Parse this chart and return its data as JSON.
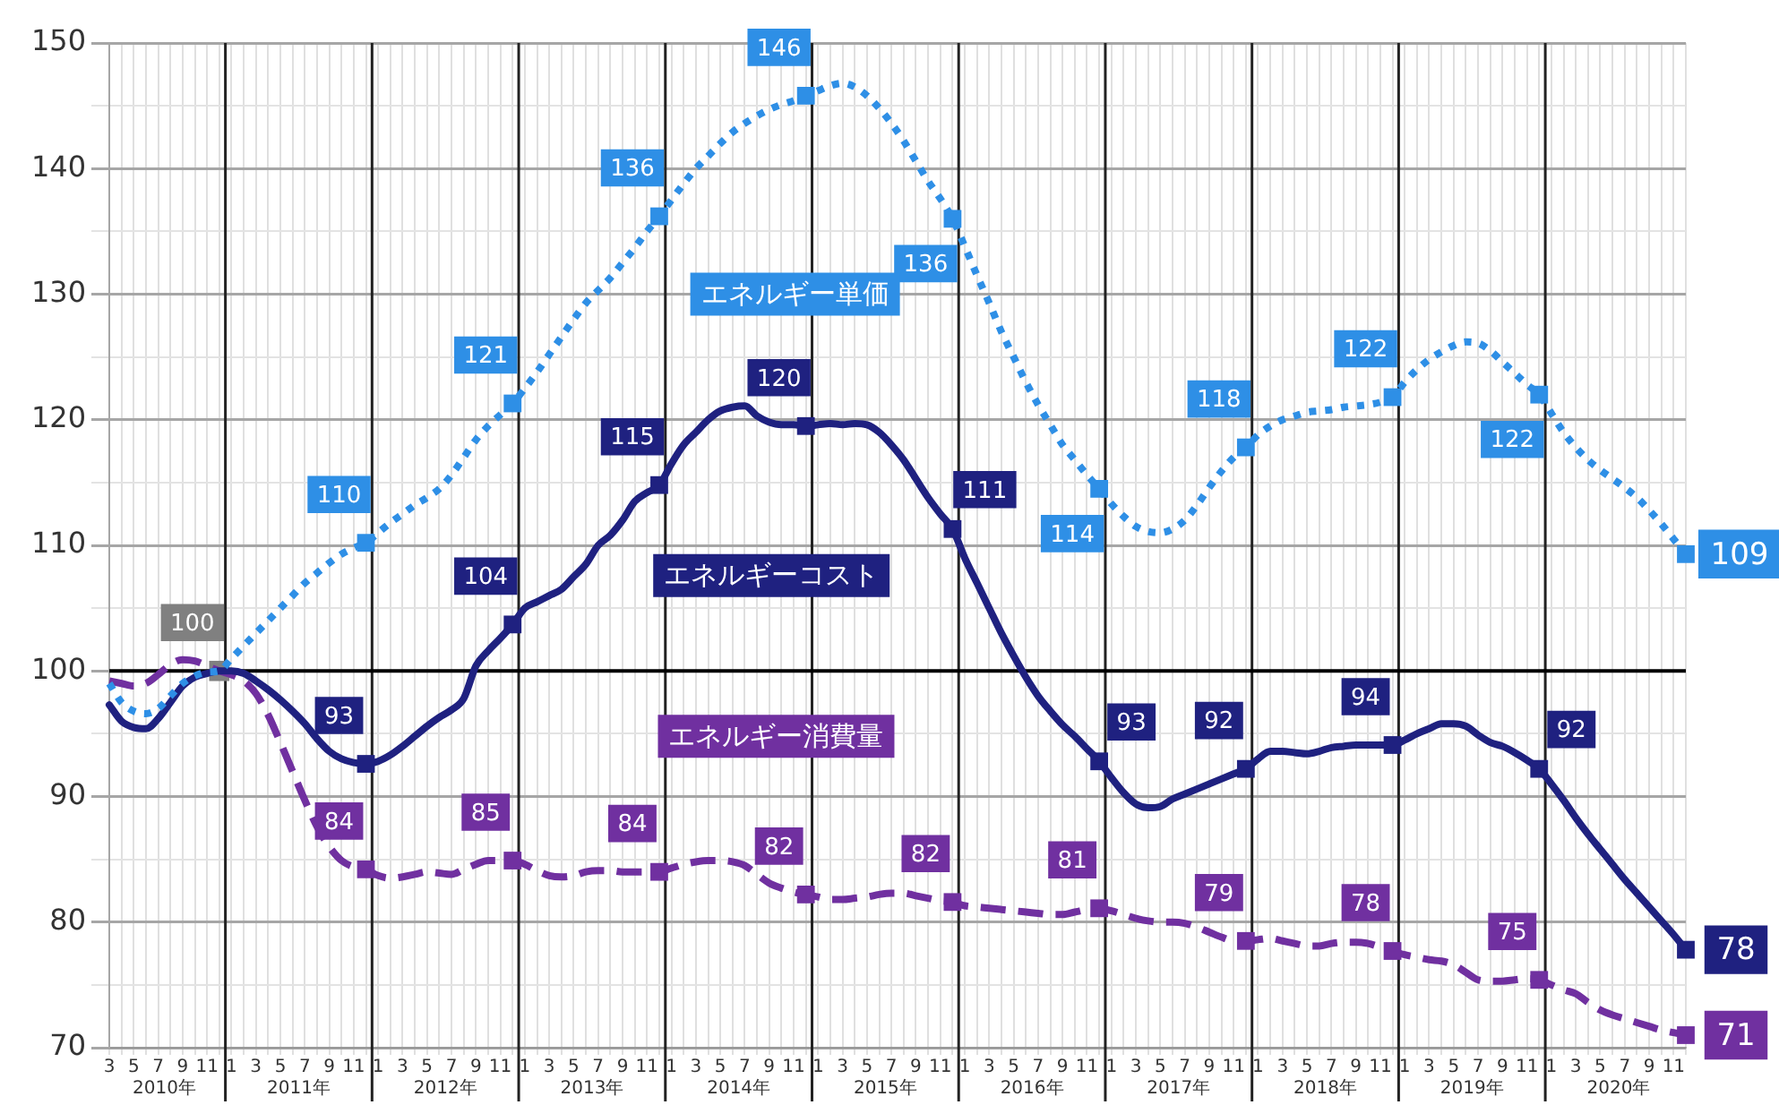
{
  "chart_data": {
    "type": "line",
    "categories": [
      "3",
      null,
      "5",
      null,
      "7",
      null,
      "9",
      null,
      "11",
      null,
      "1",
      null,
      "3",
      null,
      "5",
      null,
      "7",
      null,
      "9",
      null,
      "11",
      null,
      "1",
      null,
      "3",
      null,
      "5",
      null,
      "7",
      null,
      "9",
      null,
      "11",
      null,
      "1",
      null,
      "3",
      null,
      "5",
      null,
      "7",
      null,
      "9",
      null,
      "11",
      null,
      "1",
      null,
      "3",
      null,
      "5",
      null,
      "7",
      null,
      "9",
      null,
      "11",
      null,
      "1",
      null,
      "3",
      null,
      "5",
      null,
      "7",
      null,
      "9",
      null,
      "11",
      null,
      "1",
      null,
      "3",
      null,
      "5",
      null,
      "7",
      null,
      "9",
      null,
      "11",
      null,
      "1",
      null,
      "3",
      null,
      "5",
      null,
      "7",
      null,
      "9",
      null,
      "11",
      null,
      "1",
      null,
      "3",
      null,
      "5",
      null,
      "7",
      null,
      "9",
      null,
      "11",
      null,
      "1",
      null,
      "3",
      null,
      "5",
      null,
      "7",
      null,
      "9",
      null,
      "11",
      null,
      "1",
      null,
      "3",
      null,
      "5",
      null,
      "7",
      null,
      "9",
      null,
      "11",
      null
    ],
    "series": [
      {
        "name": "エネルギー単価",
        "color": "#2e8fe6",
        "line_style": "dotted",
        "values": [
          99,
          97.5,
          96.8,
          96.6,
          97,
          98,
          99,
          99.6,
          99.9,
          100,
          101,
          102,
          103,
          104,
          105,
          106,
          107,
          107.8,
          108.6,
          109.3,
          109.8,
          110.2,
          111,
          111.8,
          112.5,
          113.2,
          113.8,
          114.5,
          115.6,
          117,
          118.4,
          119.5,
          120.4,
          121.3,
          122.5,
          123.8,
          125.2,
          126.6,
          128,
          129.3,
          130.3,
          131.3,
          132.5,
          133.7,
          135,
          136.2,
          137.5,
          138.8,
          140,
          141,
          142,
          142.9,
          143.6,
          144.2,
          144.7,
          145.1,
          145.4,
          145.8,
          146.2,
          146.6,
          146.8,
          146.5,
          145.8,
          144.8,
          143.6,
          142.2,
          140.6,
          139,
          137.6,
          136,
          133.8,
          131.5,
          129.3,
          127,
          125,
          123,
          121.2,
          119.6,
          118,
          116.8,
          115.6,
          114.5,
          113.3,
          112.3,
          111.5,
          111.1,
          111,
          111.3,
          112,
          113.2,
          114.6,
          115.9,
          117,
          117.8,
          118.8,
          119.5,
          120,
          120.3,
          120.6,
          120.7,
          120.8,
          121,
          121.1,
          121.2,
          121.4,
          121.8,
          123,
          124,
          124.8,
          125.4,
          125.9,
          126.2,
          126.1,
          125.5,
          124.6,
          123.7,
          122.8,
          122,
          120.5,
          119,
          117.8,
          116.8,
          116,
          115.3,
          114.6,
          113.8,
          112.8,
          111.7,
          110.5,
          109.3
        ],
        "value_labels": [
          null,
          null,
          null,
          null,
          null,
          null,
          null,
          null,
          null,
          null,
          null,
          null,
          null,
          null,
          null,
          null,
          null,
          null,
          null,
          null,
          null,
          "110",
          null,
          null,
          null,
          null,
          null,
          null,
          null,
          null,
          null,
          null,
          null,
          "121",
          null,
          null,
          null,
          null,
          null,
          null,
          null,
          null,
          null,
          null,
          null,
          "136",
          null,
          null,
          null,
          null,
          null,
          null,
          null,
          null,
          null,
          null,
          null,
          "146",
          null,
          null,
          null,
          null,
          null,
          null,
          null,
          null,
          null,
          null,
          null,
          "136",
          null,
          null,
          null,
          null,
          null,
          null,
          null,
          null,
          null,
          null,
          null,
          "114",
          null,
          null,
          null,
          null,
          null,
          null,
          null,
          null,
          null,
          null,
          null,
          "118",
          null,
          null,
          null,
          null,
          null,
          null,
          null,
          null,
          null,
          null,
          null,
          "122",
          null,
          null,
          null,
          null,
          null,
          null,
          null,
          null,
          null,
          null,
          null,
          "122",
          null,
          null,
          null,
          null,
          null,
          null,
          null,
          null,
          null,
          null,
          null,
          "109"
        ]
      },
      {
        "name": "エネルギーコスト",
        "color": "#1f2180",
        "line_style": "solid",
        "values": [
          97.3,
          96,
          95.5,
          95.4,
          96.2,
          97.5,
          98.8,
          99.5,
          99.8,
          100,
          100,
          99.8,
          99.2,
          98.5,
          97.7,
          96.8,
          95.8,
          94.6,
          93.6,
          93,
          92.7,
          92.6,
          92.8,
          93.3,
          94,
          94.8,
          95.6,
          96.3,
          96.9,
          97.8,
          100.4,
          101.6,
          102.6,
          103.7,
          105,
          105.5,
          106,
          106.5,
          107.5,
          108.5,
          110,
          110.8,
          112,
          113.5,
          114.2,
          114.8,
          116.5,
          118,
          119,
          120,
          120.7,
          121,
          121.1,
          120.3,
          119.8,
          119.6,
          119.6,
          119.5,
          119.6,
          119.7,
          119.6,
          119.7,
          119.6,
          119,
          118,
          116.8,
          115.3,
          113.8,
          112.5,
          111.3,
          109,
          107,
          105,
          103,
          101.2,
          99.5,
          98,
          96.8,
          95.7,
          94.8,
          93.8,
          92.8,
          91.5,
          90.3,
          89.4,
          89.1,
          89.2,
          89.8,
          90.2,
          90.6,
          91,
          91.4,
          91.8,
          92.2,
          93,
          93.6,
          93.6,
          93.5,
          93.4,
          93.6,
          93.9,
          94,
          94.1,
          94.1,
          94.1,
          94.1,
          94.5,
          95,
          95.4,
          95.8,
          95.8,
          95.6,
          94.9,
          94.3,
          94,
          93.5,
          92.9,
          92.2,
          91,
          89.7,
          88.3,
          87,
          85.8,
          84.6,
          83.4,
          82.3,
          81.2,
          80.1,
          79,
          77.8
        ],
        "value_labels": [
          null,
          null,
          null,
          null,
          null,
          null,
          null,
          null,
          null,
          null,
          null,
          null,
          null,
          null,
          null,
          null,
          null,
          null,
          null,
          null,
          null,
          "93",
          null,
          null,
          null,
          null,
          null,
          null,
          null,
          null,
          null,
          null,
          null,
          "104",
          null,
          null,
          null,
          null,
          null,
          null,
          null,
          null,
          null,
          null,
          null,
          "115",
          null,
          null,
          null,
          null,
          null,
          null,
          null,
          null,
          null,
          null,
          null,
          "120",
          null,
          null,
          null,
          null,
          null,
          null,
          null,
          null,
          null,
          null,
          null,
          "111",
          null,
          null,
          null,
          null,
          null,
          null,
          null,
          null,
          null,
          null,
          null,
          "93",
          null,
          null,
          null,
          null,
          null,
          null,
          null,
          null,
          null,
          null,
          null,
          "92",
          null,
          null,
          null,
          null,
          null,
          null,
          null,
          null,
          null,
          null,
          null,
          "94",
          null,
          null,
          null,
          null,
          null,
          null,
          null,
          null,
          null,
          null,
          null,
          "92",
          null,
          null,
          null,
          null,
          null,
          null,
          null,
          null,
          null,
          null,
          null,
          "78"
        ]
      },
      {
        "name": "エネルギー消費量",
        "color": "#7030a0",
        "line_style": "dashed",
        "values": [
          99.2,
          99,
          98.8,
          99,
          99.7,
          100.5,
          100.9,
          100.8,
          100.4,
          100,
          99.7,
          99.2,
          98.2,
          96.5,
          94.3,
          92,
          89.7,
          87.6,
          86,
          84.9,
          84.4,
          84.2,
          83.7,
          83.5,
          83.6,
          83.8,
          84,
          83.9,
          83.8,
          84.2,
          84.6,
          84.9,
          84.9,
          84.9,
          84.6,
          84.1,
          83.7,
          83.6,
          83.7,
          84,
          84.1,
          84.1,
          84,
          84,
          84,
          84,
          84.3,
          84.6,
          84.8,
          84.9,
          84.9,
          84.8,
          84.5,
          83.8,
          83.1,
          82.7,
          82.4,
          82.2,
          82,
          81.8,
          81.8,
          81.9,
          82,
          82.2,
          82.3,
          82.3,
          82.1,
          81.9,
          81.7,
          81.6,
          81.3,
          81.2,
          81.1,
          81,
          80.9,
          80.8,
          80.7,
          80.6,
          80.6,
          80.8,
          81,
          81.1,
          80.9,
          80.6,
          80.3,
          80.1,
          80,
          80,
          79.9,
          79.6,
          79.2,
          78.8,
          78.5,
          78.5,
          78.6,
          78.7,
          78.5,
          78.3,
          78.1,
          78.1,
          78.3,
          78.4,
          78.4,
          78.3,
          78,
          77.7,
          77.4,
          77.2,
          77,
          76.9,
          76.6,
          76,
          75.4,
          75.3,
          75.3,
          75.4,
          75.5,
          75.4,
          75,
          74.6,
          74.3,
          73.6,
          73,
          72.6,
          72.3,
          72,
          71.7,
          71.4,
          71.2,
          71
        ],
        "value_labels": [
          null,
          null,
          null,
          null,
          null,
          null,
          null,
          null,
          null,
          null,
          null,
          null,
          null,
          null,
          null,
          null,
          null,
          null,
          null,
          null,
          null,
          "84",
          null,
          null,
          null,
          null,
          null,
          null,
          null,
          null,
          null,
          null,
          null,
          "85",
          null,
          null,
          null,
          null,
          null,
          null,
          null,
          null,
          null,
          null,
          null,
          "84",
          null,
          null,
          null,
          null,
          null,
          null,
          null,
          null,
          null,
          null,
          null,
          "82",
          null,
          null,
          null,
          null,
          null,
          null,
          null,
          null,
          null,
          null,
          null,
          "82",
          null,
          null,
          null,
          null,
          null,
          null,
          null,
          null,
          null,
          null,
          null,
          "81",
          null,
          null,
          null,
          null,
          null,
          null,
          null,
          null,
          null,
          null,
          null,
          "79",
          null,
          null,
          null,
          null,
          null,
          null,
          null,
          null,
          null,
          null,
          null,
          "78",
          null,
          null,
          null,
          null,
          null,
          null,
          null,
          null,
          null,
          null,
          null,
          "75",
          null,
          null,
          null,
          null,
          null,
          null,
          null,
          null,
          null,
          null,
          null,
          "71"
        ]
      },
      {
        "type": "scatter",
        "color": "#808080",
        "marker": "square",
        "values": [
          null,
          null,
          null,
          null,
          null,
          null,
          null,
          null,
          null,
          100,
          null,
          null,
          null,
          null,
          null,
          null,
          null,
          null,
          null,
          null,
          null,
          null,
          null,
          null,
          null,
          null,
          null,
          null,
          null,
          null,
          null,
          null,
          null,
          null,
          null,
          null,
          null,
          null,
          null,
          null,
          null,
          null,
          null,
          null,
          null,
          null,
          null,
          null,
          null,
          null,
          null,
          null,
          null,
          null,
          null,
          null,
          null,
          null,
          null,
          null,
          null,
          null,
          null,
          null,
          null,
          null,
          null,
          null,
          null,
          null,
          null,
          null,
          null,
          null,
          null,
          null,
          null,
          null,
          null,
          null,
          null,
          null,
          null,
          null,
          null,
          null,
          null,
          null,
          null,
          null,
          null,
          null,
          null,
          null,
          null,
          null,
          null,
          null,
          null,
          null,
          null,
          null,
          null,
          null,
          null,
          null,
          null,
          null,
          null,
          null,
          null,
          null,
          null,
          null,
          null,
          null,
          null,
          null,
          null,
          null,
          null,
          null,
          null,
          null,
          null,
          null,
          null,
          null,
          null,
          null
        ],
        "value_labels": [
          null,
          null,
          null,
          null,
          null,
          null,
          null,
          null,
          null,
          "100",
          null,
          null,
          null,
          null,
          null,
          null,
          null,
          null,
          null,
          null,
          null,
          null,
          null,
          null,
          null,
          null,
          null,
          null,
          null,
          null,
          null,
          null,
          null,
          null,
          null,
          null,
          null,
          null,
          null,
          null,
          null,
          null,
          null,
          null,
          null,
          null,
          null,
          null,
          null,
          null,
          null,
          null,
          null,
          null,
          null,
          null,
          null,
          null,
          null,
          null,
          null,
          null,
          null,
          null,
          null,
          null,
          null,
          null,
          null,
          null,
          null,
          null,
          null,
          null,
          null,
          null,
          null,
          null,
          null,
          null,
          null,
          null,
          null,
          null,
          null,
          null,
          null,
          null,
          null,
          null,
          null,
          null,
          null,
          null,
          null,
          null,
          null,
          null,
          null,
          null,
          null,
          null,
          null,
          null,
          null,
          null,
          null,
          null,
          null,
          null,
          null,
          null,
          null,
          null,
          null,
          null,
          null,
          null,
          null,
          null,
          null,
          null,
          null,
          null,
          null,
          null,
          null,
          null,
          null,
          null
        ]
      }
    ],
    "ylim": [
      70,
      150
    ],
    "yticks": [
      70,
      {
        "value": 75,
        "label": null
      },
      80,
      {
        "value": 85,
        "label": null
      },
      90,
      {
        "value": 95,
        "label": null
      },
      100,
      {
        "value": 105,
        "label": null
      },
      110,
      {
        "value": 115,
        "label": null
      },
      120,
      {
        "value": 125,
        "label": null
      },
      130,
      {
        "value": 135,
        "label": null
      },
      140,
      {
        "value": 145,
        "label": null
      },
      150
    ],
    "grid": true,
    "legend": false,
    "ref_lines": [
      {
        "axis": "y",
        "value": 100,
        "color": "#000000"
      }
    ],
    "annotations": [
      "2010年",
      "2011年",
      "2012年",
      "2013年",
      "2014年",
      "2015年",
      "2016年",
      "2017年",
      "2018年",
      "2019年",
      "2020年"
    ]
  }
}
